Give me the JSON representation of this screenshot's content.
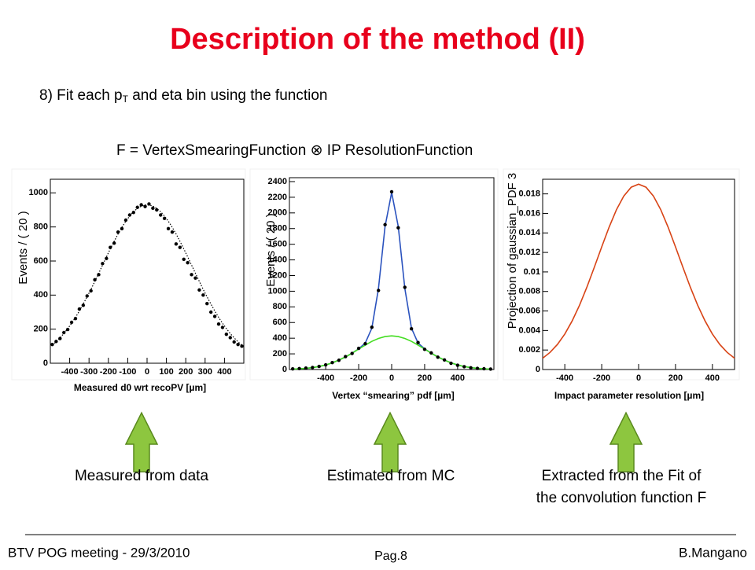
{
  "title": "Description of the method (II)",
  "intro": {
    "before": "8) Fit each p",
    "sub": "T",
    "after": " and eta bin using the function"
  },
  "formula": "F = VertexSmearingFunction ⊗ IP ResolutionFunction",
  "captions": [
    "Measured from data",
    "Estimated from MC",
    "Extracted from the Fit of",
    "the convolution function F"
  ],
  "footer": {
    "left": "BTV POG meeting - 29/3/2010",
    "center": "Pag.8",
    "right": "B.Mangano"
  },
  "chart_data": [
    {
      "type": "scatter",
      "x_label": "Measured d0 wrt recoPV [µm]",
      "y_label": "Events / ( 20 )",
      "xlim": [
        -500,
        500
      ],
      "xticks": [
        -400,
        -300,
        -200,
        -100,
        0,
        100,
        200,
        300,
        400
      ],
      "ylim": [
        0,
        1080
      ],
      "yticks": [
        0,
        200,
        400,
        600,
        800,
        1000
      ],
      "x": [
        -490,
        -470,
        -450,
        -430,
        -410,
        -390,
        -370,
        -350,
        -330,
        -310,
        -290,
        -270,
        -250,
        -230,
        -210,
        -190,
        -170,
        -150,
        -130,
        -110,
        -90,
        -70,
        -50,
        -30,
        -10,
        10,
        30,
        50,
        70,
        90,
        110,
        130,
        150,
        170,
        190,
        210,
        230,
        250,
        270,
        290,
        310,
        330,
        350,
        370,
        390,
        410,
        430,
        450,
        470,
        490
      ],
      "series": [
        {
          "style": "points",
          "color": "#000000",
          "values": [
            110,
            128,
            145,
            180,
            198,
            240,
            262,
            318,
            340,
            395,
            425,
            490,
            520,
            585,
            615,
            680,
            705,
            770,
            790,
            840,
            870,
            885,
            915,
            930,
            920,
            935,
            910,
            900,
            870,
            850,
            790,
            770,
            700,
            680,
            610,
            590,
            520,
            500,
            430,
            400,
            350,
            300,
            275,
            230,
            210,
            170,
            150,
            125,
            110,
            100
          ]
        },
        {
          "style": "dotted",
          "color": "#000000",
          "values": [
            106,
            126,
            149,
            174,
            203,
            235,
            269,
            307,
            347,
            390,
            434,
            481,
            528,
            576,
            624,
            671,
            716,
            759,
            798,
            833,
            864,
            890,
            909,
            922,
            929,
            929,
            922,
            909,
            890,
            864,
            833,
            798,
            759,
            716,
            671,
            624,
            576,
            528,
            481,
            434,
            390,
            347,
            307,
            269,
            235,
            203,
            174,
            149,
            126,
            106
          ]
        }
      ]
    },
    {
      "type": "scatter",
      "x_label": "Vertex “smearing” pdf [µm]",
      "y_label": "Events / ( 20 )",
      "xlim": [
        -620,
        620
      ],
      "xticks": [
        -400,
        -200,
        0,
        200,
        400
      ],
      "ylim": [
        0,
        2450
      ],
      "yticks": [
        0,
        200,
        400,
        600,
        800,
        1000,
        1200,
        1400,
        1600,
        1800,
        2000,
        2200,
        2400
      ],
      "x": [
        -600,
        -560,
        -520,
        -480,
        -440,
        -400,
        -360,
        -320,
        -280,
        -240,
        -200,
        -160,
        -120,
        -80,
        -40,
        0,
        40,
        80,
        120,
        160,
        200,
        240,
        280,
        320,
        360,
        400,
        440,
        480,
        520,
        560,
        600
      ],
      "series": [
        {
          "style": "points",
          "color": "#000000",
          "values": [
            8,
            12,
            18,
            26,
            40,
            60,
            88,
            118,
            165,
            205,
            270,
            330,
            540,
            1010,
            1850,
            2270,
            1810,
            1050,
            520,
            345,
            258,
            212,
            158,
            122,
            80,
            55,
            36,
            22,
            14,
            10,
            6
          ]
        },
        {
          "style": "line",
          "color": "#2a52be",
          "values": [
            5,
            9,
            15,
            24,
            38,
            58,
            85,
            120,
            161,
            209,
            264,
            339,
            528,
            1032,
            1826,
            2260,
            1826,
            1032,
            528,
            339,
            264,
            209,
            161,
            120,
            85,
            58,
            38,
            24,
            15,
            9,
            5
          ]
        },
        {
          "style": "line",
          "color": "#44dd22",
          "values": [
            5,
            9,
            15,
            24,
            38,
            58,
            85,
            120,
            161,
            209,
            261,
            312,
            359,
            397,
            421,
            430,
            421,
            397,
            359,
            312,
            261,
            209,
            161,
            120,
            85,
            58,
            38,
            24,
            15,
            9,
            5
          ]
        }
      ]
    },
    {
      "type": "line",
      "x_label": "Impact parameter resolution [µm]",
      "y_label": "Projection of gaussian_PDF 3",
      "xlim": [
        -520,
        520
      ],
      "xticks": [
        -400,
        -200,
        0,
        200,
        400
      ],
      "ylim": [
        0,
        0.0195
      ],
      "yticks": [
        0,
        0.002,
        0.004,
        0.006,
        0.008,
        0.01,
        0.012,
        0.014,
        0.016,
        0.018
      ],
      "x": [
        -520,
        -480,
        -440,
        -400,
        -360,
        -320,
        -280,
        -240,
        -200,
        -160,
        -120,
        -80,
        -40,
        0,
        40,
        80,
        120,
        160,
        200,
        240,
        280,
        320,
        360,
        400,
        440,
        480,
        520
      ],
      "series": [
        {
          "style": "line",
          "color": "#d84315",
          "values": [
            0.00116,
            0.00176,
            0.00257,
            0.00364,
            0.00498,
            0.00659,
            0.00845,
            0.01048,
            0.01257,
            0.01459,
            0.01637,
            0.01778,
            0.01869,
            0.019,
            0.01869,
            0.01778,
            0.01637,
            0.01459,
            0.01257,
            0.01048,
            0.00845,
            0.00659,
            0.00498,
            0.00364,
            0.00257,
            0.00176,
            0.00116
          ]
        }
      ]
    }
  ]
}
